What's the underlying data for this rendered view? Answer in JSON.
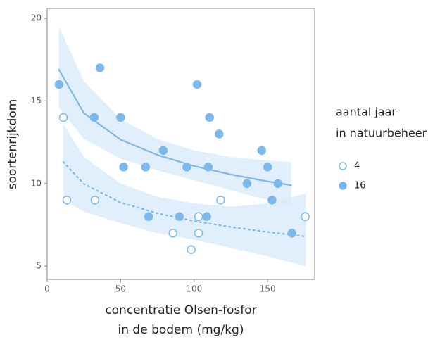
{
  "chart_data": {
    "type": "scatter",
    "xlabel": [
      "concentratie Olsen-fosfor",
      "in de bodem (mg/kg)"
    ],
    "ylabel": "soortenrijkdom",
    "legend_title": [
      "aantal jaar",
      "in natuurbeheer"
    ],
    "legend": "right",
    "xlim": [
      0,
      182
    ],
    "ylim": [
      4.2,
      20.6
    ],
    "xticks": [
      0,
      50,
      100,
      150
    ],
    "yticks": [
      5,
      10,
      15,
      20
    ],
    "series": [
      {
        "name": "4",
        "color": "#7db8ec",
        "marker": "open",
        "linestyle": "dotted",
        "band_color": "#d9eafa",
        "x": [
          11,
          13.4,
          32.5,
          85.6,
          98,
          103,
          103,
          118,
          175.6
        ],
        "values": [
          14,
          9,
          9,
          7,
          6,
          8,
          7,
          9,
          8
        ],
        "fit": {
          "x": [
            11,
            25,
            50,
            75,
            100,
            125,
            150,
            176
          ],
          "y": [
            11.3,
            9.98,
            8.85,
            8.2,
            7.73,
            7.37,
            7.07,
            6.8
          ],
          "upper": [
            13.6,
            11.6,
            10.0,
            9.2,
            8.8,
            8.6,
            8.8,
            9.4
          ],
          "lower": [
            9.0,
            8.3,
            7.6,
            7.0,
            6.6,
            6.1,
            5.6,
            5.0
          ]
        }
      },
      {
        "name": "16",
        "color": "#7db8ec",
        "marker": "filled",
        "linestyle": "solid",
        "band_color": "#d9eafa",
        "x": [
          8.1,
          35.9,
          32,
          50,
          52,
          67,
          79,
          102,
          110.5,
          117,
          95,
          109.6,
          146,
          150,
          136,
          157,
          153,
          69,
          90,
          108.6,
          166.5
        ],
        "values": [
          16,
          17,
          14,
          14,
          11,
          11,
          12,
          16,
          14,
          13,
          11,
          11,
          12,
          11,
          10,
          10,
          9,
          8,
          8,
          8,
          7
        ],
        "fit": {
          "x": [
            8,
            25,
            50,
            75,
            100,
            125,
            150,
            166
          ],
          "y": [
            16.9,
            14.26,
            12.66,
            11.73,
            11.06,
            10.55,
            10.13,
            9.9
          ],
          "upper": [
            19.5,
            16.2,
            13.9,
            12.7,
            12.0,
            11.6,
            11.4,
            11.3
          ],
          "lower": [
            14.6,
            12.7,
            11.5,
            10.8,
            10.2,
            9.6,
            9.0,
            8.6
          ]
        }
      }
    ]
  }
}
